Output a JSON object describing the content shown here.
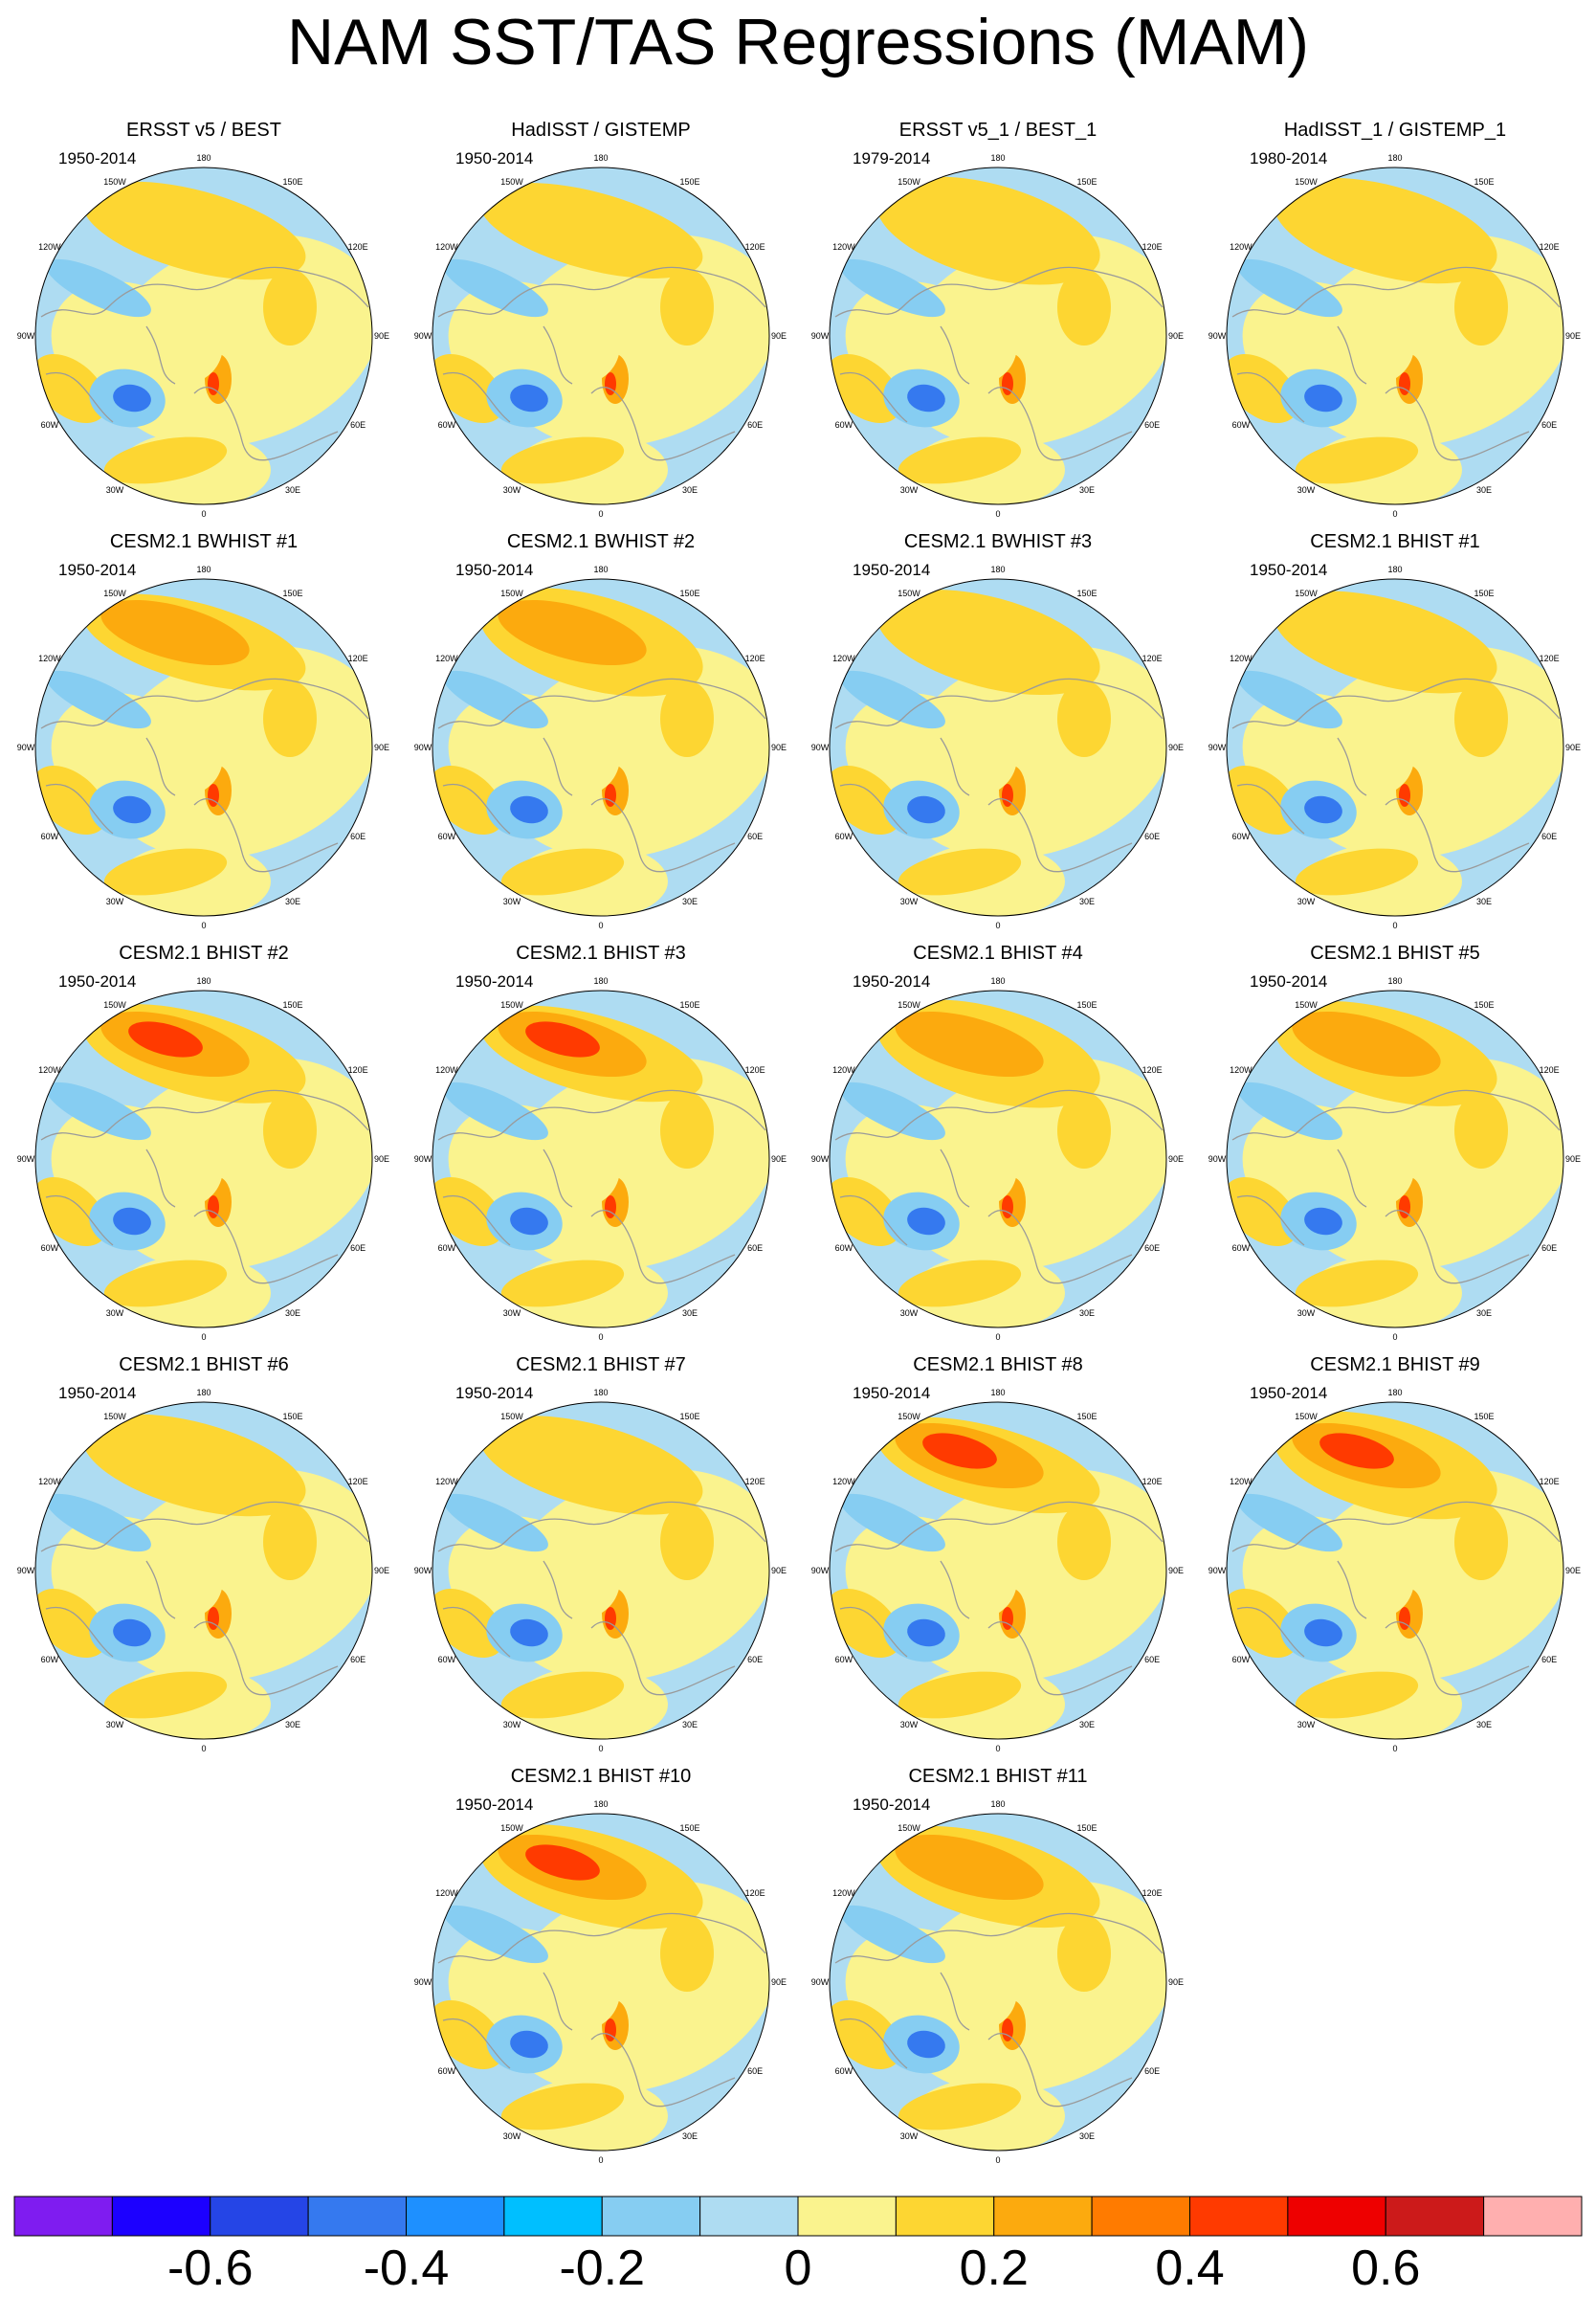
{
  "title": "NAM SST/TAS Regressions (MAM)",
  "longitude_labels": [
    "180",
    "150E",
    "120E",
    "90E",
    "60E",
    "30E",
    "0",
    "30W",
    "60W",
    "90W",
    "120W",
    "150W"
  ],
  "panels": [
    {
      "title": "ERSST v5 / BEST",
      "years": "1950-2014"
    },
    {
      "title": "HadISST / GISTEMP",
      "years": "1950-2014"
    },
    {
      "title": "ERSST v5_1 / BEST_1",
      "years": "1979-2014"
    },
    {
      "title": "HadISST_1 / GISTEMP_1",
      "years": "1980-2014"
    },
    {
      "title": "CESM2.1 BWHIST #1",
      "years": "1950-2014"
    },
    {
      "title": "CESM2.1 BWHIST #2",
      "years": "1950-2014"
    },
    {
      "title": "CESM2.1 BWHIST #3",
      "years": "1950-2014"
    },
    {
      "title": "CESM2.1 BHIST #1",
      "years": "1950-2014"
    },
    {
      "title": "CESM2.1 BHIST #2",
      "years": "1950-2014"
    },
    {
      "title": "CESM2.1 BHIST #3",
      "years": "1950-2014"
    },
    {
      "title": "CESM2.1 BHIST #4",
      "years": "1950-2014"
    },
    {
      "title": "CESM2.1 BHIST #5",
      "years": "1950-2014"
    },
    {
      "title": "CESM2.1 BHIST #6",
      "years": "1950-2014"
    },
    {
      "title": "CESM2.1 BHIST #7",
      "years": "1950-2014"
    },
    {
      "title": "CESM2.1 BHIST #8",
      "years": "1950-2014"
    },
    {
      "title": "CESM2.1 BHIST #9",
      "years": "1950-2014"
    },
    {
      "title": "CESM2.1 BHIST #10",
      "years": "1950-2014"
    },
    {
      "title": "CESM2.1 BHIST #11",
      "years": "1950-2014"
    }
  ],
  "colorbar": {
    "colors": [
      "#7f1cf0",
      "#1c00ff",
      "#2545e6",
      "#3579ef",
      "#1e90ff",
      "#00bfff",
      "#86cdf2",
      "#aedcf2",
      "#faf38e",
      "#fdd632",
      "#fcaa0e",
      "#ff7b00",
      "#ff3a00",
      "#ee0000",
      "#cc1a1a",
      "#ffafaf"
    ],
    "labels": [
      "-0.6",
      "-0.4",
      "-0.2",
      "0",
      "0.2",
      "0.4",
      "0.6"
    ]
  },
  "map_colors": {
    "ocean_blue": "#aedcf2",
    "neutral_yellow": "#faf38e",
    "warm_yellow": "#fdd632",
    "warm_orange": "#fcaa0e",
    "hot_red": "#ff3a00",
    "cool_blue": "#86cdf2",
    "deep_blue": "#3579ef",
    "coast": "#9a9a9a"
  }
}
